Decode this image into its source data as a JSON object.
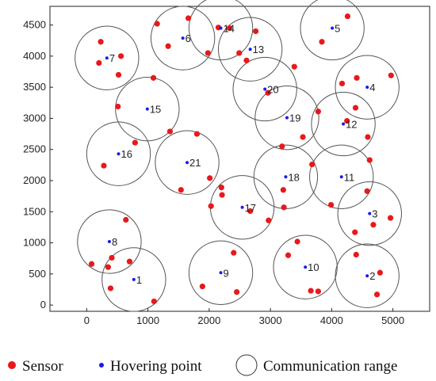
{
  "chart_data": {
    "type": "scatter",
    "title": "",
    "xlabel": "",
    "ylabel": "",
    "xlim": [
      -600,
      5600
    ],
    "ylim": [
      -100,
      4800
    ],
    "x_ticks": [
      0,
      1000,
      2000,
      3000,
      4000,
      5000
    ],
    "y_ticks": [
      0,
      500,
      1000,
      1500,
      2000,
      2500,
      3000,
      3500,
      4000,
      4500
    ],
    "x_tick_labels": [
      "0",
      "1000",
      "2000",
      "3000",
      "4000",
      "5000"
    ],
    "y_tick_labels": [
      "0",
      "500",
      "1000",
      "1500",
      "2000",
      "2500",
      "3000",
      "3500",
      "4000",
      "4500"
    ],
    "grid": false,
    "communication_range": 520,
    "colors": {
      "sensor": "#e8181b",
      "hovering_point": "#1a1aee",
      "circle": "#555555"
    },
    "legend": {
      "placement": "bottom",
      "entries": [
        {
          "label": "Sensor",
          "marker": "red-dot"
        },
        {
          "label": "Hovering point",
          "marker": "blue-dot"
        },
        {
          "label": "Communication range",
          "marker": "circle"
        }
      ]
    },
    "hovering_points": [
      {
        "id": "1",
        "x": 770,
        "y": 410
      },
      {
        "id": "2",
        "x": 4580,
        "y": 470
      },
      {
        "id": "3",
        "x": 4620,
        "y": 1470
      },
      {
        "id": "4",
        "x": 4580,
        "y": 3500
      },
      {
        "id": "5",
        "x": 4010,
        "y": 4450
      },
      {
        "id": "6",
        "x": 1570,
        "y": 4290
      },
      {
        "id": "7",
        "x": 330,
        "y": 3970
      },
      {
        "id": "8",
        "x": 370,
        "y": 1020
      },
      {
        "id": "9",
        "x": 2190,
        "y": 520
      },
      {
        "id": "10",
        "x": 3570,
        "y": 610
      },
      {
        "id": "11",
        "x": 4160,
        "y": 2060
      },
      {
        "id": "12",
        "x": 4190,
        "y": 2910
      },
      {
        "id": "13",
        "x": 2670,
        "y": 4110
      },
      {
        "id": "14",
        "x": 2190,
        "y": 4450
      },
      {
        "id": "15",
        "x": 990,
        "y": 3150
      },
      {
        "id": "16",
        "x": 520,
        "y": 2430
      },
      {
        "id": "17",
        "x": 2540,
        "y": 1570
      },
      {
        "id": "18",
        "x": 3250,
        "y": 2060
      },
      {
        "id": "19",
        "x": 3270,
        "y": 3010
      },
      {
        "id": "20",
        "x": 2910,
        "y": 3470
      },
      {
        "id": "21",
        "x": 1640,
        "y": 2290
      }
    ],
    "sensors": [
      [
        230,
        4230
      ],
      [
        200,
        3890
      ],
      [
        560,
        4000
      ],
      [
        520,
        3700
      ],
      [
        1150,
        4520
      ],
      [
        1330,
        4160
      ],
      [
        1660,
        4610
      ],
      [
        1980,
        4050
      ],
      [
        2150,
        4460
      ],
      [
        2330,
        4450
      ],
      [
        2490,
        4050
      ],
      [
        2610,
        3930
      ],
      [
        2760,
        4400
      ],
      [
        4260,
        4640
      ],
      [
        3840,
        4230
      ],
      [
        4170,
        3560
      ],
      [
        4410,
        3650
      ],
      [
        4970,
        3690
      ],
      [
        1090,
        3650
      ],
      [
        510,
        3190
      ],
      [
        1360,
        2790
      ],
      [
        3390,
        3830
      ],
      [
        2960,
        3410
      ],
      [
        3780,
        3110
      ],
      [
        4390,
        3170
      ],
      [
        4250,
        2960
      ],
      [
        4590,
        2700
      ],
      [
        3530,
        2700
      ],
      [
        790,
        2610
      ],
      [
        280,
        2240
      ],
      [
        1800,
        2750
      ],
      [
        2010,
        2040
      ],
      [
        1540,
        1850
      ],
      [
        3190,
        2550
      ],
      [
        3680,
        2260
      ],
      [
        4620,
        2330
      ],
      [
        3210,
        1850
      ],
      [
        3220,
        1570
      ],
      [
        2200,
        1890
      ],
      [
        2210,
        1770
      ],
      [
        2030,
        1590
      ],
      [
        2670,
        1510
      ],
      [
        2970,
        1360
      ],
      [
        3990,
        1610
      ],
      [
        4580,
        1830
      ],
      [
        4680,
        1290
      ],
      [
        4960,
        1400
      ],
      [
        4380,
        1170
      ],
      [
        640,
        1370
      ],
      [
        80,
        660
      ],
      [
        410,
        760
      ],
      [
        350,
        610
      ],
      [
        700,
        700
      ],
      [
        390,
        270
      ],
      [
        1100,
        60
      ],
      [
        2400,
        840
      ],
      [
        2450,
        210
      ],
      [
        1890,
        300
      ],
      [
        3440,
        1020
      ],
      [
        3290,
        800
      ],
      [
        3660,
        230
      ],
      [
        3780,
        220
      ],
      [
        4400,
        810
      ],
      [
        4790,
        520
      ],
      [
        4740,
        170
      ]
    ]
  }
}
